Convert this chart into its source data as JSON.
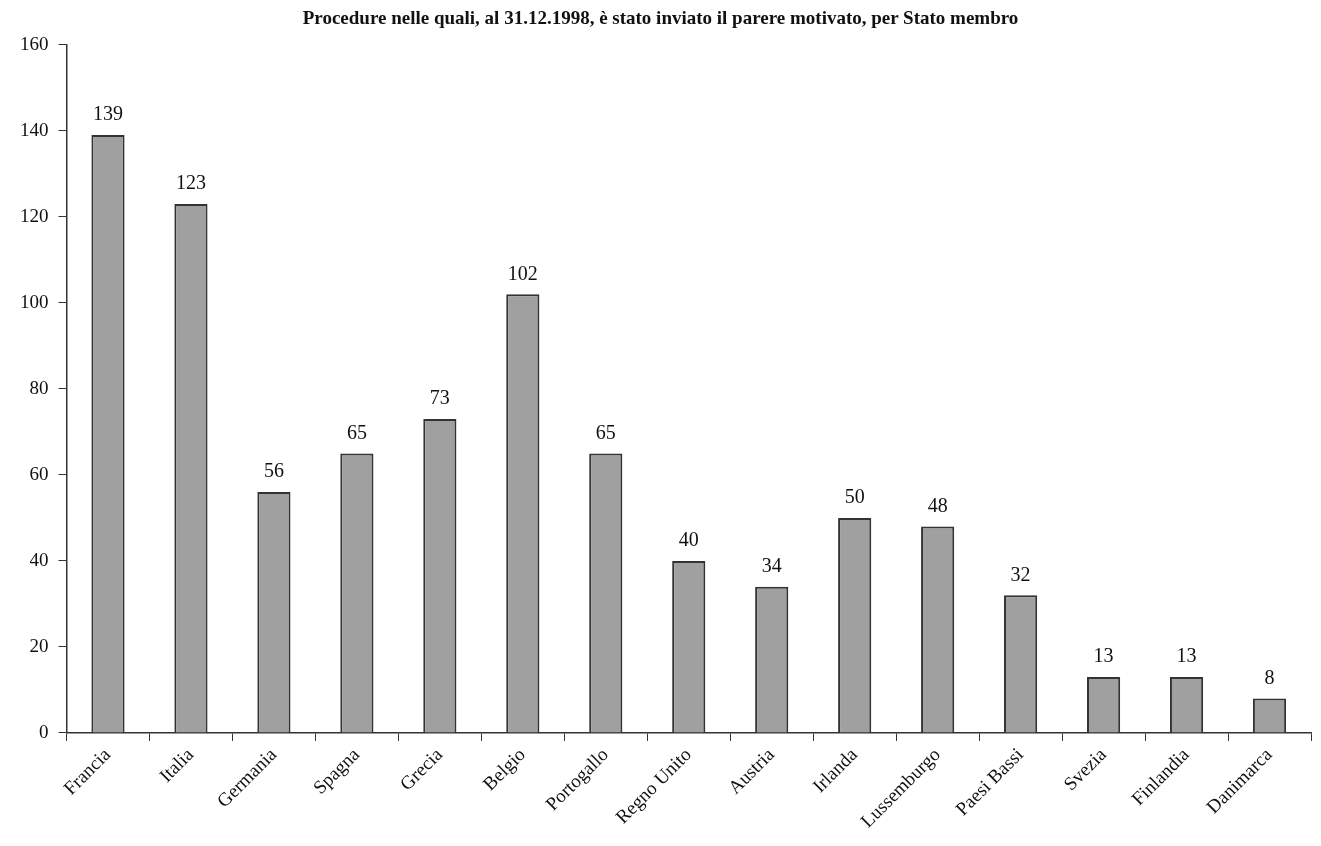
{
  "chart_data": {
    "type": "bar",
    "title": "Procedure nelle quali, al 31.12.1998, è stato inviato il parere motivato, per Stato membro",
    "categories": [
      "Francia",
      "Italia",
      "Germania",
      "Spagna",
      "Grecia",
      "Belgio",
      "Portogallo",
      "Regno Unito",
      "Austria",
      "Irlanda",
      "Lussemburgo",
      "Paesi Bassi",
      "Svezia",
      "Finlandia",
      "Danimarca"
    ],
    "values": [
      139,
      123,
      56,
      65,
      73,
      102,
      65,
      40,
      34,
      50,
      48,
      32,
      13,
      13,
      8
    ],
    "color": "#a0a0a0",
    "ylim": [
      0,
      160
    ],
    "yticks": [
      0,
      20,
      40,
      60,
      80,
      100,
      120,
      140,
      160
    ],
    "grid": false,
    "legend": false,
    "data_labels": true
  }
}
